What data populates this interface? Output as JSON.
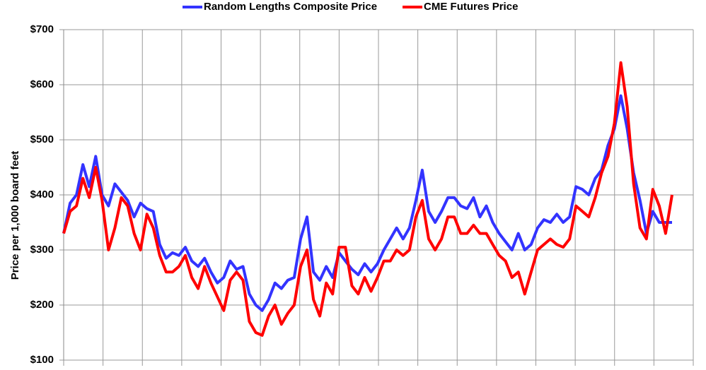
{
  "chart_data": {
    "type": "line",
    "y_label": "Price per 1,000 board feet",
    "categories": [
      null,
      null,
      null,
      null,
      null,
      null,
      null,
      null,
      null,
      null,
      null,
      null,
      null,
      null,
      null,
      null,
      null,
      null,
      null,
      null,
      null,
      null,
      null,
      null,
      null,
      null,
      null,
      null,
      null,
      null,
      null,
      null,
      null,
      null,
      null,
      null,
      null,
      null,
      null,
      null,
      null,
      null,
      null,
      null,
      null,
      null,
      null,
      null,
      null,
      null,
      null,
      null,
      null,
      null,
      null,
      null,
      null,
      null,
      null,
      null,
      null,
      null,
      null,
      null,
      null,
      null,
      null,
      null,
      null,
      null,
      null,
      null,
      null,
      null,
      null,
      null,
      null,
      null,
      null,
      null,
      null,
      null,
      null,
      null,
      null,
      null,
      null,
      null,
      null,
      null,
      null,
      null,
      null,
      null,
      null,
      null
    ],
    "series": [
      {
        "name": "Random Lengths Composite Price",
        "color": "#3333ff",
        "values": [
          330,
          385,
          400,
          455,
          415,
          470,
          400,
          380,
          420,
          405,
          390,
          360,
          385,
          375,
          370,
          310,
          285,
          295,
          290,
          305,
          280,
          270,
          285,
          260,
          240,
          250,
          280,
          265,
          270,
          220,
          200,
          190,
          210,
          240,
          230,
          245,
          250,
          320,
          360,
          260,
          245,
          270,
          250,
          295,
          280,
          265,
          255,
          275,
          260,
          275,
          300,
          320,
          340,
          320,
          340,
          390,
          445,
          370,
          350,
          370,
          395,
          395,
          380,
          375,
          395,
          360,
          380,
          350,
          330,
          315,
          300,
          330,
          300,
          310,
          340,
          355,
          350,
          365,
          350,
          360,
          415,
          410,
          400,
          430,
          445,
          490,
          520,
          580,
          520,
          440,
          390,
          330,
          370,
          350,
          350,
          350
        ]
      },
      {
        "name": "CME Futures Price",
        "color": "#ff0000",
        "values": [
          330,
          370,
          380,
          430,
          395,
          450,
          390,
          300,
          340,
          395,
          380,
          330,
          300,
          365,
          340,
          290,
          260,
          260,
          270,
          290,
          250,
          230,
          270,
          240,
          215,
          190,
          245,
          260,
          245,
          170,
          150,
          145,
          180,
          200,
          165,
          185,
          200,
          270,
          300,
          210,
          180,
          240,
          220,
          305,
          305,
          235,
          220,
          250,
          225,
          250,
          280,
          280,
          300,
          290,
          300,
          360,
          390,
          320,
          300,
          320,
          360,
          360,
          330,
          330,
          345,
          330,
          330,
          310,
          290,
          280,
          250,
          260,
          220,
          260,
          300,
          310,
          320,
          310,
          305,
          320,
          380,
          370,
          360,
          395,
          440,
          470,
          530,
          640,
          560,
          420,
          340,
          320,
          410,
          380,
          330,
          400
        ]
      }
    ],
    "ylim": [
      100,
      700
    ],
    "yticks": [
      {
        "value": 100,
        "label": "$100"
      },
      {
        "value": 200,
        "label": "$200"
      },
      {
        "value": 300,
        "label": "$300"
      },
      {
        "value": 400,
        "label": "$400"
      },
      {
        "value": 500,
        "label": "$500"
      },
      {
        "value": 600,
        "label": "$600"
      },
      {
        "value": 700,
        "label": "$700"
      }
    ],
    "grid": true,
    "legend": "top"
  }
}
